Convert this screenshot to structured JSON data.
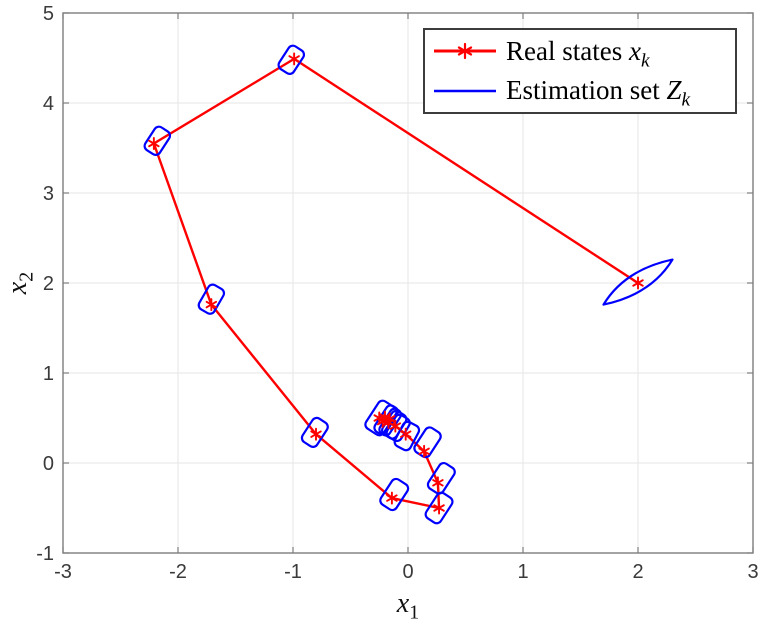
{
  "chart_data": {
    "type": "line",
    "title": "",
    "xlabel": {
      "var": "x",
      "sub": "1"
    },
    "ylabel": {
      "var": "x",
      "sub": "2"
    },
    "xlim": [
      -3,
      3
    ],
    "ylim": [
      -1,
      5
    ],
    "xticks": [
      -3,
      -2,
      -1,
      0,
      1,
      2,
      3
    ],
    "yticks": [
      -1,
      0,
      1,
      2,
      3,
      4,
      5
    ],
    "grid": true,
    "legend_position": "top-right",
    "colors": {
      "grid": "#e6e6e6",
      "axis": "#7d7d7d",
      "tick_label": "#3a3a3a"
    },
    "series": [
      {
        "name": "Real states x_k",
        "type": "line-with-asterisk-markers",
        "color": "#ff0000",
        "points": [
          [
            2.0,
            2.0
          ],
          [
            -0.99,
            4.49
          ],
          [
            -2.21,
            3.55
          ],
          [
            -1.71,
            1.76
          ],
          [
            -0.8,
            0.32
          ],
          [
            -0.14,
            -0.39
          ],
          [
            0.27,
            -0.5
          ],
          [
            0.26,
            -0.22
          ],
          [
            0.14,
            0.13
          ],
          [
            -0.02,
            0.32
          ],
          [
            -0.11,
            0.41
          ],
          [
            -0.16,
            0.49
          ],
          [
            -0.22,
            0.46
          ],
          [
            -0.25,
            0.5
          ],
          [
            -0.2,
            0.51
          ],
          [
            -0.17,
            0.45
          ]
        ]
      },
      {
        "name": "Estimation set Z_k",
        "type": "polygon-outlines",
        "color": "#0000ff",
        "lens": {
          "tip1": [
            1.7,
            1.76
          ],
          "tip2": [
            2.3,
            2.26
          ],
          "ctrl_up": [
            1.885,
            2.148
          ],
          "ctrl_down": [
            2.115,
            1.872
          ]
        },
        "boxes": [
          {
            "cx": -1.015,
            "cy": 4.48,
            "w": 0.15,
            "h": 0.3,
            "rot": 33
          },
          {
            "cx": -2.18,
            "cy": 3.58,
            "w": 0.15,
            "h": 0.3,
            "rot": 33
          },
          {
            "cx": -1.71,
            "cy": 1.82,
            "w": 0.15,
            "h": 0.31,
            "rot": 30
          },
          {
            "cx": -0.81,
            "cy": 0.34,
            "w": 0.15,
            "h": 0.31,
            "rot": 33
          },
          {
            "cx": -0.12,
            "cy": -0.35,
            "w": 0.16,
            "h": 0.33,
            "rot": 33
          },
          {
            "cx": 0.27,
            "cy": -0.5,
            "w": 0.15,
            "h": 0.33,
            "rot": 33
          },
          {
            "cx": 0.29,
            "cy": -0.17,
            "w": 0.15,
            "h": 0.33,
            "rot": 33
          },
          {
            "cx": 0.17,
            "cy": 0.23,
            "w": 0.15,
            "h": 0.32,
            "rot": 33
          },
          {
            "cx": -0.01,
            "cy": 0.3,
            "w": 0.15,
            "h": 0.3,
            "rot": 28
          },
          {
            "cx": -0.235,
            "cy": 0.5,
            "w": 0.18,
            "h": 0.36,
            "rot": 33
          },
          {
            "cx": -0.19,
            "cy": 0.48,
            "w": 0.11,
            "h": 0.34,
            "rot": 33
          },
          {
            "cx": -0.155,
            "cy": 0.455,
            "w": 0.1,
            "h": 0.32,
            "rot": 33
          },
          {
            "cx": -0.12,
            "cy": 0.425,
            "w": 0.14,
            "h": 0.3,
            "rot": 32
          },
          {
            "cx": -0.085,
            "cy": 0.39,
            "w": 0.14,
            "h": 0.28,
            "rot": 31
          }
        ]
      }
    ]
  },
  "legend": {
    "row1_text": "Real states ",
    "row1_var": "x",
    "row1_sub": "k",
    "row2_text": "Estimation set ",
    "row2_var": "Z",
    "row2_sub": "k"
  }
}
